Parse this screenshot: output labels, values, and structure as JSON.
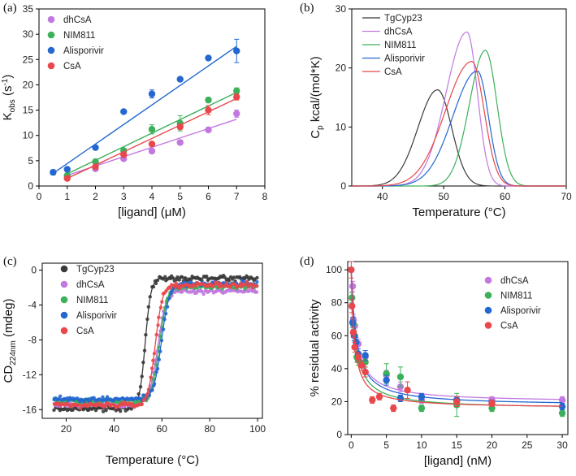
{
  "chart_data": [
    {
      "panel": "(a)",
      "type": "scatter",
      "xlabel": "[ligand] (μM)",
      "ylabel_main": "K",
      "ylabel_sub": "obs",
      "ylabel_unit": " (s",
      "ylabel_sup": "-1",
      "ylabel_end": ")",
      "xlim": [
        0,
        8
      ],
      "ylim": [
        0,
        35
      ],
      "xticks": [
        0,
        1,
        2,
        3,
        4,
        5,
        6,
        7,
        8
      ],
      "yticks": [
        0,
        5,
        10,
        15,
        20,
        25,
        30,
        35
      ],
      "legend_position": "top-left",
      "series": [
        {
          "name": "dhCsA",
          "color": "#c178e0",
          "points": [
            [
              1,
              1.8
            ],
            [
              2,
              3.4
            ],
            [
              3,
              5.4
            ],
            [
              4,
              6.9
            ],
            [
              5,
              8.6
            ],
            [
              6,
              11.1
            ],
            [
              7,
              14.3
            ]
          ],
          "errors": [
            0.2,
            0.3,
            0.3,
            0.4,
            0.4,
            0.4,
            0.7
          ],
          "fit": [
            [
              1,
              2.1
            ],
            [
              7,
              13.2
            ]
          ]
        },
        {
          "name": "NIM811",
          "color": "#3cb05a",
          "points": [
            [
              1,
              2.1
            ],
            [
              2,
              4.8
            ],
            [
              3,
              7.0
            ],
            [
              4,
              11.2
            ],
            [
              5,
              12.4
            ],
            [
              6,
              17.0
            ],
            [
              7,
              18.8
            ]
          ],
          "errors": [
            0.2,
            0.3,
            0.3,
            0.9,
            1.5,
            0.5,
            0.6
          ],
          "fit": [
            [
              1,
              2.4
            ],
            [
              7,
              18.5
            ]
          ]
        },
        {
          "name": "Alisporivir",
          "color": "#2367d1",
          "points": [
            [
              0.5,
              2.7
            ],
            [
              1,
              3.3
            ],
            [
              2,
              7.6
            ],
            [
              3,
              14.7
            ],
            [
              4,
              18.2
            ],
            [
              5,
              21.1
            ],
            [
              6,
              25.3
            ],
            [
              7,
              26.7
            ]
          ],
          "errors": [
            0.5,
            0.3,
            0.3,
            0.2,
            0.8,
            0.3,
            0.4,
            2.3
          ],
          "fit": [
            [
              0.5,
              2.5
            ],
            [
              7,
              27.6
            ]
          ]
        },
        {
          "name": "CsA",
          "color": "#e8474b",
          "points": [
            [
              1,
              1.5
            ],
            [
              2,
              3.8
            ],
            [
              3,
              6.2
            ],
            [
              4,
              8.3
            ],
            [
              5,
              11.7
            ],
            [
              6,
              15.0
            ],
            [
              7,
              17.6
            ]
          ],
          "errors": [
            0.2,
            0.3,
            0.3,
            0.4,
            0.5,
            0.9,
            0.6
          ],
          "fit": [
            [
              1,
              1.5
            ],
            [
              7,
              17.3
            ]
          ]
        }
      ]
    },
    {
      "panel": "(b)",
      "type": "line",
      "xlabel": "Temperature (°C)",
      "ylabel_main": "C",
      "ylabel_sub": "p",
      "ylabel_rest": " kcal/(mol*K)",
      "xlim": [
        35,
        70
      ],
      "ylim": [
        0,
        30
      ],
      "xticks": [
        40,
        50,
        60,
        70
      ],
      "yticks": [
        0,
        10,
        20,
        30
      ],
      "legend_position": "top-left",
      "series": [
        {
          "name": "TgCyp23",
          "color": "#3a3a3a",
          "peak_x": 49.0,
          "peak_y": 16.3,
          "left_width": 3.2,
          "right_width": 2.3
        },
        {
          "name": "dhCsA",
          "color": "#c178e0",
          "peak_x": 53.8,
          "peak_y": 26.1,
          "left_width": 3.4,
          "right_width": 1.7
        },
        {
          "name": "NIM811",
          "color": "#3cb05a",
          "peak_x": 56.8,
          "peak_y": 23.0,
          "left_width": 2.6,
          "right_width": 1.9
        },
        {
          "name": "Alisporivir",
          "color": "#2367d1",
          "peak_x": 55.5,
          "peak_y": 19.5,
          "left_width": 4.0,
          "right_width": 1.8
        },
        {
          "name": "CsA",
          "color": "#e8474b",
          "peak_x": 54.6,
          "peak_y": 21.1,
          "left_width": 4.3,
          "right_width": 2.0
        }
      ]
    },
    {
      "panel": "(c)",
      "type": "scatter",
      "xlabel": "Temperature (°C)",
      "ylabel_main": "CD",
      "ylabel_sub": "224nm",
      "ylabel_rest": " (mdeg)",
      "xlim": [
        10,
        102
      ],
      "ylim": [
        -17,
        0.8
      ],
      "xticks": [
        20,
        40,
        60,
        80,
        100
      ],
      "yticks": [
        0,
        -4,
        -8,
        -12,
        -16
      ],
      "ytick_labels": [
        "0",
        "-4",
        "-8",
        "-12",
        "-16"
      ],
      "legend_position": "top-left",
      "series": [
        {
          "name": "TgCyp23",
          "color": "#3a3a3a",
          "low": -15.9,
          "high": -0.9,
          "tm": 53.0,
          "slope": 1.2
        },
        {
          "name": "dhCsA",
          "color": "#c178e0",
          "low": -15.4,
          "high": -2.4,
          "tm": 58.2,
          "slope": 1.7
        },
        {
          "name": "NIM811",
          "color": "#3cb05a",
          "low": -15.0,
          "high": -1.9,
          "tm": 59.0,
          "slope": 1.6
        },
        {
          "name": "Alisporivir",
          "color": "#2367d1",
          "low": -14.8,
          "high": -1.6,
          "tm": 59.8,
          "slope": 1.6
        },
        {
          "name": "CsA",
          "color": "#e8474b",
          "low": -15.5,
          "high": -1.7,
          "tm": 57.2,
          "slope": 1.5
        }
      ]
    },
    {
      "panel": "(d)",
      "type": "scatter",
      "xlabel": "[ligand] (nM)",
      "ylabel": "% residual activity",
      "xlim": [
        -0.5,
        30.8
      ],
      "ylim": [
        0,
        105
      ],
      "xticks": [
        0,
        5,
        10,
        15,
        20,
        25,
        30
      ],
      "yticks": [
        0,
        20,
        40,
        60,
        80,
        100
      ],
      "legend_position": "top-right",
      "series": [
        {
          "name": "dhCsA",
          "color": "#c178e0",
          "points": [
            [
              0.2,
              90
            ],
            [
              0.3,
              70
            ],
            [
              0.5,
              66
            ],
            [
              1,
              55
            ],
            [
              2,
              47
            ],
            [
              5,
              36
            ],
            [
              7,
              29
            ],
            [
              10,
              21
            ],
            [
              20,
              21
            ],
            [
              30,
              21
            ]
          ],
          "errors": [
            3,
            3,
            3,
            3,
            2,
            3,
            3,
            2,
            2,
            2
          ],
          "fit_bottom": 19.5,
          "fit_ic50": 0.7
        },
        {
          "name": "NIM811",
          "color": "#3cb05a",
          "points": [
            [
              0.1,
              83
            ],
            [
              0.3,
              67
            ],
            [
              0.5,
              60
            ],
            [
              0.8,
              47
            ],
            [
              1,
              45
            ],
            [
              2,
              44
            ],
            [
              5,
              37
            ],
            [
              7,
              35
            ],
            [
              10,
              16
            ],
            [
              15,
              18
            ],
            [
              20,
              16
            ],
            [
              30,
              13
            ]
          ],
          "errors": [
            3,
            3,
            3,
            3,
            3,
            3,
            6,
            6,
            2,
            7,
            2,
            2
          ],
          "fit_bottom": 15.5,
          "fit_ic50": 0.6
        },
        {
          "name": "Alisporivir",
          "color": "#2367d1",
          "points": [
            [
              0.2,
              68
            ],
            [
              0.4,
              60
            ],
            [
              0.7,
              56
            ],
            [
              1,
              49
            ],
            [
              2,
              48
            ],
            [
              5,
              33
            ],
            [
              7,
              22
            ],
            [
              10,
              23
            ],
            [
              15,
              21
            ],
            [
              20,
              19
            ],
            [
              30,
              17
            ]
          ],
          "errors": [
            3,
            3,
            3,
            3,
            3,
            3,
            2,
            2,
            2,
            2,
            2
          ],
          "fit_bottom": 17.5,
          "fit_ic50": 0.7
        },
        {
          "name": "CsA",
          "color": "#e8474b",
          "points": [
            [
              0,
              100
            ],
            [
              0.1,
              78
            ],
            [
              0.3,
              62
            ],
            [
              0.5,
              53
            ],
            [
              1,
              47
            ],
            [
              1.5,
              42
            ],
            [
              2,
              38
            ],
            [
              3,
              21
            ],
            [
              4,
              23
            ],
            [
              6,
              16
            ],
            [
              8,
              27
            ],
            [
              15,
              20
            ],
            [
              20,
              19
            ]
          ],
          "errors": [
            5,
            4,
            3,
            3,
            3,
            3,
            3,
            2,
            2,
            2,
            5,
            3,
            2
          ],
          "fit_bottom": 16.0,
          "fit_ic50": 0.45
        }
      ]
    }
  ]
}
